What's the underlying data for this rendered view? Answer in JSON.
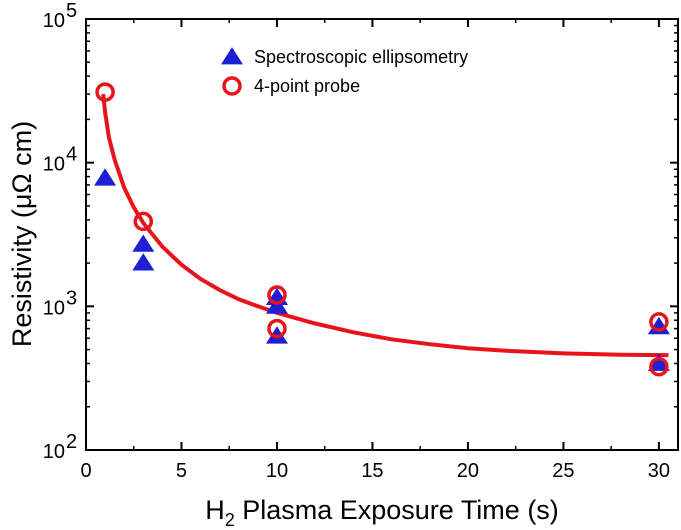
{
  "chart_data": {
    "type": "scatter",
    "xlabel": {
      "main": "H",
      "sub": "2",
      "rest": " Plasma Exposure Time (s)"
    },
    "ylabel": "Resistivity (μΩ cm)",
    "xlim": [
      0,
      31
    ],
    "ylim": [
      100,
      100000
    ],
    "yscale": "log",
    "x_ticks": [
      0,
      5,
      10,
      15,
      20,
      25,
      30
    ],
    "y_ticks": [
      {
        "value": 100,
        "base": "10",
        "exp": "2"
      },
      {
        "value": 1000,
        "base": "10",
        "exp": "3"
      },
      {
        "value": 10000,
        "base": "10",
        "exp": "4"
      },
      {
        "value": 100000,
        "base": "10",
        "exp": "5"
      }
    ],
    "grid": false,
    "legend": "top-center",
    "series": [
      {
        "name": "Spectroscopic ellipsometry",
        "marker": "filled-triangle",
        "color": "#1f1fd6",
        "points": [
          [
            1,
            7800
          ],
          [
            3,
            2700
          ],
          [
            3,
            2000
          ],
          [
            10,
            1150
          ],
          [
            10,
            1000
          ],
          [
            10,
            620
          ],
          [
            30,
            720
          ],
          [
            30,
            400
          ]
        ]
      },
      {
        "name": "4-point probe",
        "marker": "open-circle",
        "color": "#e8141b",
        "points": [
          [
            1,
            31000
          ],
          [
            3,
            3900
          ],
          [
            10,
            1200
          ],
          [
            10,
            700
          ],
          [
            30,
            780
          ],
          [
            30,
            380
          ]
        ]
      }
    ],
    "fit_curve": {
      "color": "#e8141b",
      "points": [
        [
          0.9,
          30000
        ],
        [
          1.0,
          22500
        ],
        [
          1.2,
          15000
        ],
        [
          1.5,
          10500
        ],
        [
          2.0,
          6700
        ],
        [
          2.5,
          4900
        ],
        [
          3.0,
          3800
        ],
        [
          4.0,
          2600
        ],
        [
          5.0,
          1950
        ],
        [
          6.0,
          1550
        ],
        [
          7.0,
          1300
        ],
        [
          8.0,
          1120
        ],
        [
          9.0,
          1000
        ],
        [
          10.0,
          900
        ],
        [
          12.0,
          760
        ],
        [
          14.0,
          660
        ],
        [
          16.0,
          590
        ],
        [
          18.0,
          545
        ],
        [
          20.0,
          510
        ],
        [
          22.0,
          490
        ],
        [
          25.0,
          470
        ],
        [
          28.0,
          460
        ],
        [
          30.5,
          458
        ]
      ]
    }
  }
}
